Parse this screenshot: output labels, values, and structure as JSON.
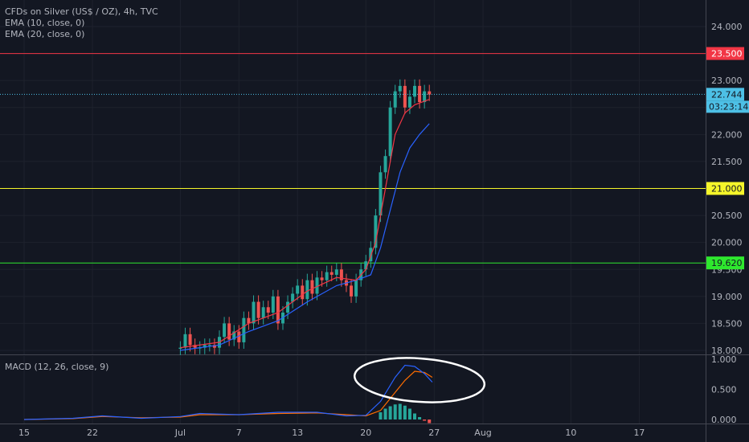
{
  "chart_data": {
    "type": "candlestick",
    "title": "CFDs on Silver (US$ / OZ), 4h, TVC",
    "indicators": [
      {
        "name": "EMA (10, close, 0)",
        "color": "#f23645"
      },
      {
        "name": "EMA (20, close, 0)",
        "color": "#2962ff"
      }
    ],
    "price_axis": {
      "ylim": [
        18.0,
        24.35
      ],
      "ticks": [
        "24.000",
        "23.500",
        "23.000",
        "22.500",
        "22.000",
        "21.500",
        "21.000",
        "20.500",
        "20.000",
        "19.500",
        "19.000",
        "18.500",
        "18.000"
      ]
    },
    "x_axis": {
      "ticks": [
        {
          "label": "15",
          "day": 0
        },
        {
          "label": "22",
          "day": 7
        },
        {
          "label": "Jul",
          "day": 16
        },
        {
          "label": "7",
          "day": 22
        },
        {
          "label": "13",
          "day": 28
        },
        {
          "label": "20",
          "day": 35
        },
        {
          "label": "27",
          "day": 42
        },
        {
          "label": "Aug",
          "day": 47
        },
        {
          "label": "10",
          "day": 56
        },
        {
          "label": "17",
          "day": 63
        }
      ]
    },
    "horizontal_levels": [
      {
        "label": "23.500",
        "value": 23.5,
        "color": "#f23645",
        "text_color": "#ffffff"
      },
      {
        "label": "21.000",
        "value": 21.0,
        "color": "#f5f52a",
        "text_color": "#131722"
      },
      {
        "label": "19.620",
        "value": 19.62,
        "color": "#2ee82e",
        "text_color": "#131722"
      }
    ],
    "last_price": {
      "label": "22.744",
      "value": 22.744,
      "countdown": "03:23:14",
      "color": "#4dc0e6"
    },
    "candles": [
      {
        "d": 16.0,
        "c": 18.05
      },
      {
        "d": 16.5,
        "c": 18.3
      },
      {
        "d": 17.0,
        "c": 18.1
      },
      {
        "d": 17.5,
        "c": 18.05
      },
      {
        "d": 18.0,
        "c": 18.05
      },
      {
        "d": 18.5,
        "c": 18.1
      },
      {
        "d": 19.0,
        "c": 18.1
      },
      {
        "d": 19.5,
        "c": 18.05
      },
      {
        "d": 20.0,
        "c": 18.25
      },
      {
        "d": 20.5,
        "c": 18.5
      },
      {
        "d": 21.0,
        "c": 18.2
      },
      {
        "d": 21.5,
        "c": 18.35
      },
      {
        "d": 22.0,
        "c": 18.15
      },
      {
        "d": 22.5,
        "c": 18.6
      },
      {
        "d": 23.0,
        "c": 18.5
      },
      {
        "d": 23.5,
        "c": 18.9
      },
      {
        "d": 24.0,
        "c": 18.6
      },
      {
        "d": 24.5,
        "c": 18.8
      },
      {
        "d": 25.0,
        "c": 18.7
      },
      {
        "d": 25.5,
        "c": 19.0
      },
      {
        "d": 26.0,
        "c": 18.5
      },
      {
        "d": 26.5,
        "c": 18.7
      },
      {
        "d": 27.0,
        "c": 18.9
      },
      {
        "d": 27.5,
        "c": 19.05
      },
      {
        "d": 28.0,
        "c": 19.2
      },
      {
        "d": 28.5,
        "c": 18.95
      },
      {
        "d": 29.0,
        "c": 19.3
      },
      {
        "d": 29.5,
        "c": 19.05
      },
      {
        "d": 30.0,
        "c": 19.35
      },
      {
        "d": 30.5,
        "c": 19.3
      },
      {
        "d": 31.0,
        "c": 19.45
      },
      {
        "d": 31.5,
        "c": 19.4
      },
      {
        "d": 32.0,
        "c": 19.5
      },
      {
        "d": 32.5,
        "c": 19.3
      },
      {
        "d": 33.0,
        "c": 19.2
      },
      {
        "d": 33.5,
        "c": 19.0
      },
      {
        "d": 34.0,
        "c": 19.3
      },
      {
        "d": 34.5,
        "c": 19.5
      },
      {
        "d": 35.0,
        "c": 19.65
      },
      {
        "d": 35.5,
        "c": 19.9
      },
      {
        "d": 36.0,
        "c": 20.5
      },
      {
        "d": 36.5,
        "c": 21.3
      },
      {
        "d": 37.0,
        "c": 21.6
      },
      {
        "d": 37.5,
        "c": 22.5
      },
      {
        "d": 38.0,
        "c": 22.8
      },
      {
        "d": 38.5,
        "c": 22.9
      },
      {
        "d": 39.0,
        "c": 22.5
      },
      {
        "d": 39.5,
        "c": 22.7
      },
      {
        "d": 40.0,
        "c": 22.9
      },
      {
        "d": 40.5,
        "c": 22.6
      },
      {
        "d": 41.0,
        "c": 22.8
      },
      {
        "d": 41.5,
        "c": 22.74
      }
    ],
    "ema10": [
      {
        "d": 16,
        "v": 18.05
      },
      {
        "d": 20,
        "v": 18.15
      },
      {
        "d": 23,
        "v": 18.5
      },
      {
        "d": 26,
        "v": 18.7
      },
      {
        "d": 29,
        "v": 19.1
      },
      {
        "d": 32,
        "v": 19.35
      },
      {
        "d": 34,
        "v": 19.3
      },
      {
        "d": 35,
        "v": 19.5
      },
      {
        "d": 36,
        "v": 20.0
      },
      {
        "d": 37,
        "v": 21.0
      },
      {
        "d": 38,
        "v": 22.0
      },
      {
        "d": 39,
        "v": 22.4
      },
      {
        "d": 40,
        "v": 22.55
      },
      {
        "d": 41.5,
        "v": 22.65
      }
    ],
    "ema20": [
      {
        "d": 16,
        "v": 18.0
      },
      {
        "d": 20,
        "v": 18.1
      },
      {
        "d": 23,
        "v": 18.35
      },
      {
        "d": 26,
        "v": 18.55
      },
      {
        "d": 29,
        "v": 18.9
      },
      {
        "d": 32,
        "v": 19.2
      },
      {
        "d": 34,
        "v": 19.3
      },
      {
        "d": 35.5,
        "v": 19.4
      },
      {
        "d": 36.5,
        "v": 19.9
      },
      {
        "d": 37.5,
        "v": 20.6
      },
      {
        "d": 38.5,
        "v": 21.3
      },
      {
        "d": 39.5,
        "v": 21.75
      },
      {
        "d": 40.5,
        "v": 22.0
      },
      {
        "d": 41.5,
        "v": 22.2
      }
    ],
    "macd_panel": {
      "label": "MACD (12, 26, close, 9)",
      "ylim": [
        -0.05,
        1.0
      ],
      "ticks": [
        "1.000",
        "0.500",
        "0.000"
      ],
      "macd_color": "#2962ff",
      "signal_color": "#ff6d00",
      "macd": [
        {
          "d": 0,
          "v": 0.0
        },
        {
          "d": 5,
          "v": 0.02
        },
        {
          "d": 8,
          "v": 0.06
        },
        {
          "d": 12,
          "v": 0.02
        },
        {
          "d": 16,
          "v": 0.05
        },
        {
          "d": 18,
          "v": 0.1
        },
        {
          "d": 22,
          "v": 0.08
        },
        {
          "d": 26,
          "v": 0.12
        },
        {
          "d": 30,
          "v": 0.12
        },
        {
          "d": 33,
          "v": 0.06
        },
        {
          "d": 35,
          "v": 0.07
        },
        {
          "d": 36.5,
          "v": 0.3
        },
        {
          "d": 38,
          "v": 0.7
        },
        {
          "d": 39,
          "v": 0.9
        },
        {
          "d": 40,
          "v": 0.88
        },
        {
          "d": 41,
          "v": 0.76
        },
        {
          "d": 41.8,
          "v": 0.62
        }
      ],
      "signal": [
        {
          "d": 0,
          "v": 0.0
        },
        {
          "d": 5,
          "v": 0.015
        },
        {
          "d": 8,
          "v": 0.05
        },
        {
          "d": 12,
          "v": 0.03
        },
        {
          "d": 16,
          "v": 0.04
        },
        {
          "d": 18,
          "v": 0.08
        },
        {
          "d": 22,
          "v": 0.08
        },
        {
          "d": 26,
          "v": 0.1
        },
        {
          "d": 30,
          "v": 0.11
        },
        {
          "d": 33,
          "v": 0.08
        },
        {
          "d": 35,
          "v": 0.06
        },
        {
          "d": 36.5,
          "v": 0.15
        },
        {
          "d": 38,
          "v": 0.45
        },
        {
          "d": 39,
          "v": 0.65
        },
        {
          "d": 40,
          "v": 0.8
        },
        {
          "d": 41,
          "v": 0.78
        },
        {
          "d": 41.8,
          "v": 0.7
        }
      ],
      "histogram": [
        {
          "d": 36.5,
          "v": 0.12
        },
        {
          "d": 37,
          "v": 0.18
        },
        {
          "d": 37.5,
          "v": 0.22
        },
        {
          "d": 38,
          "v": 0.25
        },
        {
          "d": 38.5,
          "v": 0.26
        },
        {
          "d": 39,
          "v": 0.23
        },
        {
          "d": 39.5,
          "v": 0.18
        },
        {
          "d": 40,
          "v": 0.1
        },
        {
          "d": 40.5,
          "v": 0.04
        },
        {
          "d": 41,
          "v": -0.02
        },
        {
          "d": 41.5,
          "v": -0.06
        }
      ],
      "annotation": "hand-drawn ellipse around MACD crossover"
    }
  }
}
